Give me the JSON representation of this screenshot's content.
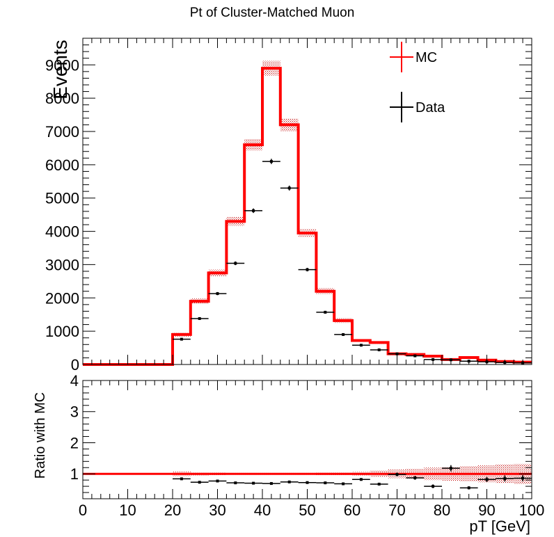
{
  "chart_data": [
    {
      "type": "line",
      "title": "Pt of Cluster-Matched Muon",
      "ylabel": "Events",
      "xlabel": "",
      "xlim": [
        0,
        100
      ],
      "ylim": [
        0,
        9800
      ],
      "yticks": [
        0,
        1000,
        2000,
        3000,
        4000,
        5000,
        6000,
        7000,
        8000,
        9000
      ],
      "ytick_labels": [
        "0",
        "1000",
        "2000",
        "3000",
        "4000",
        "5000",
        "6000",
        "7000",
        "8000",
        "9000"
      ],
      "legend_position": "top-right",
      "bin_edges": [
        0,
        4,
        8,
        12,
        16,
        20,
        24,
        28,
        32,
        36,
        40,
        44,
        48,
        52,
        56,
        60,
        64,
        68,
        72,
        76,
        80,
        84,
        88,
        92,
        96,
        100
      ],
      "series": [
        {
          "name": "MC",
          "color": "#ff0000",
          "style": "histogram",
          "values": [
            0,
            0,
            0,
            0,
            0,
            900,
            1900,
            2750,
            4300,
            6600,
            8900,
            7200,
            3950,
            2200,
            1320,
            720,
            660,
            320,
            300,
            250,
            150,
            210,
            130,
            90,
            70
          ],
          "uncertainty": [
            0,
            0,
            0,
            0,
            0,
            60,
            80,
            100,
            130,
            170,
            220,
            190,
            120,
            90,
            70,
            50,
            45,
            40,
            40,
            35,
            30,
            35,
            30,
            25,
            20
          ]
        },
        {
          "name": "Data",
          "color": "#000000",
          "style": "points",
          "x": [
            22,
            26,
            30,
            34,
            38,
            42,
            46,
            50,
            54,
            58,
            62,
            66,
            70,
            74,
            78,
            82,
            86,
            90,
            94,
            98
          ],
          "values": [
            760,
            1380,
            2130,
            3040,
            4620,
            6100,
            5300,
            2850,
            1570,
            900,
            580,
            440,
            320,
            260,
            150,
            140,
            100,
            80,
            60,
            50
          ],
          "errors": [
            28,
            37,
            46,
            55,
            68,
            78,
            73,
            53,
            40,
            30,
            24,
            21,
            18,
            16,
            12,
            12,
            10,
            9,
            8,
            7
          ]
        }
      ]
    },
    {
      "type": "scatter",
      "title": "",
      "ylabel": "Ratio with MC",
      "xlabel": "pT [GeV]",
      "xlim": [
        0,
        100
      ],
      "ylim": [
        0.2,
        4
      ],
      "yticks": [
        1,
        2,
        3,
        4
      ],
      "ytick_labels": [
        "1",
        "2",
        "3",
        "4"
      ],
      "xticks": [
        0,
        10,
        20,
        30,
        40,
        50,
        60,
        70,
        80,
        90,
        100
      ],
      "xtick_labels": [
        "0",
        "10",
        "20",
        "30",
        "40",
        "50",
        "60",
        "70",
        "80",
        "90",
        "100"
      ],
      "reference_line": 1,
      "series": [
        {
          "name": "",
          "color": "#000000",
          "style": "points",
          "x": [
            22,
            26,
            30,
            34,
            38,
            42,
            46,
            50,
            54,
            58,
            62,
            66,
            70,
            74,
            78,
            82,
            86,
            90,
            94,
            98
          ],
          "values": [
            0.84,
            0.73,
            0.77,
            0.71,
            0.7,
            0.69,
            0.74,
            0.72,
            0.71,
            0.68,
            0.82,
            0.67,
            0.98,
            0.87,
            0.6,
            1.18,
            0.55,
            0.82,
            0.85,
            0.86
          ],
          "errors": [
            0.03,
            0.03,
            0.03,
            0.03,
            0.03,
            0.03,
            0.03,
            0.03,
            0.03,
            0.03,
            0.04,
            0.04,
            0.06,
            0.06,
            0.06,
            0.1,
            0.05,
            0.08,
            0.1,
            0.1
          ]
        }
      ],
      "band": {
        "color": "#c00000",
        "lower": [
          1,
          1,
          1,
          1,
          1,
          0.93,
          0.95,
          0.96,
          0.97,
          0.97,
          0.97,
          0.97,
          0.97,
          0.96,
          0.96,
          0.94,
          0.9,
          0.86,
          0.84,
          0.8,
          0.78,
          0.76,
          0.73,
          0.7,
          0.68
        ],
        "upper": [
          1,
          1,
          1,
          1,
          1,
          1.07,
          1.05,
          1.04,
          1.03,
          1.03,
          1.03,
          1.03,
          1.03,
          1.04,
          1.04,
          1.06,
          1.1,
          1.14,
          1.16,
          1.2,
          1.22,
          1.24,
          1.27,
          1.3,
          1.32
        ]
      }
    }
  ]
}
